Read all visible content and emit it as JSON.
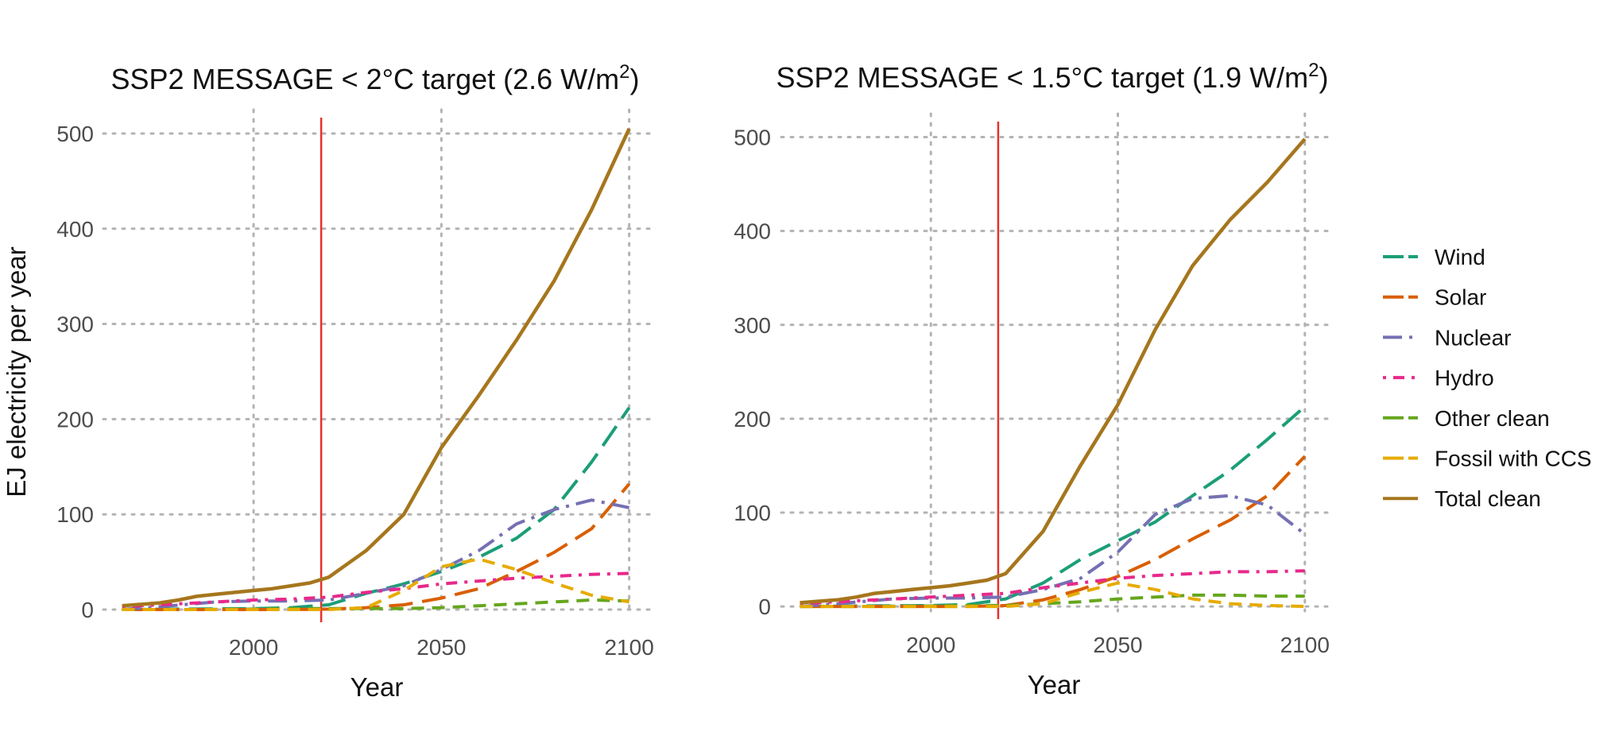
{
  "colors": {
    "Wind": "#1b9e77",
    "Solar": "#d95f02",
    "Nuclear": "#7570b3",
    "Hydro": "#e7298a",
    "Other clean": "#66a61e",
    "Fossil with CCS": "#e6ab02",
    "Total clean": "#a6761d",
    "marker": "#e8302b"
  },
  "ylabel": "EJ electricity per year",
  "xlabel": "Year",
  "legend": {
    "position": "right",
    "entries": [
      {
        "name": "Wind",
        "dash": "long-dash"
      },
      {
        "name": "Solar",
        "dash": "long-dash"
      },
      {
        "name": "Nuclear",
        "dash": "dash-dot"
      },
      {
        "name": "Hydro",
        "dash": "dot-dash"
      },
      {
        "name": "Other clean",
        "dash": "dash"
      },
      {
        "name": "Fossil with CCS",
        "dash": "dash"
      },
      {
        "name": "Total clean",
        "dash": "solid"
      }
    ]
  },
  "chart_data": [
    {
      "type": "line",
      "title_text": "SSP2 MESSAGE < 2°C target (2.6 W/m",
      "title_sup": "2",
      "title_end": ")",
      "xlabel": "Year",
      "ylabel": "EJ electricity per year",
      "xlim": [
        1960,
        2106
      ],
      "ylim": [
        -5,
        525
      ],
      "xticks": [
        2000,
        2050,
        2100
      ],
      "yticks": [
        0,
        100,
        200,
        300,
        400,
        500
      ],
      "vline": 2018,
      "grid": true,
      "series": [
        {
          "name": "Wind",
          "x": [
            1965,
            1980,
            2000,
            2010,
            2020,
            2030,
            2040,
            2050,
            2060,
            2070,
            2080,
            2090,
            2100
          ],
          "y": [
            0,
            0.5,
            1,
            2,
            5,
            17,
            27,
            40,
            55,
            75,
            105,
            155,
            212
          ]
        },
        {
          "name": "Solar",
          "x": [
            1965,
            1980,
            2000,
            2010,
            2020,
            2030,
            2040,
            2050,
            2060,
            2070,
            2080,
            2090,
            2100
          ],
          "y": [
            0,
            0,
            0,
            0,
            0.5,
            2,
            5,
            12,
            22,
            40,
            60,
            85,
            132
          ]
        },
        {
          "name": "Nuclear",
          "x": [
            1965,
            1975,
            1990,
            2000,
            2010,
            2020,
            2030,
            2040,
            2050,
            2060,
            2070,
            2080,
            2090,
            2100
          ],
          "y": [
            0,
            3,
            8,
            9,
            9,
            10,
            17,
            25,
            42,
            62,
            90,
            105,
            115,
            107
          ]
        },
        {
          "name": "Hydro",
          "x": [
            1965,
            1980,
            2000,
            2010,
            2020,
            2030,
            2040,
            2050,
            2060,
            2070,
            2080,
            2090,
            2100
          ],
          "y": [
            3,
            6,
            10,
            11,
            13,
            18,
            22,
            27,
            30,
            33,
            35,
            37,
            38
          ]
        },
        {
          "name": "Other clean",
          "x": [
            1965,
            1980,
            2000,
            2010,
            2020,
            2030,
            2040,
            2050,
            2060,
            2070,
            2080,
            2090,
            2100
          ],
          "y": [
            0,
            0,
            0.5,
            1,
            1,
            1,
            1,
            2,
            4,
            6,
            8,
            10,
            9
          ]
        },
        {
          "name": "Fossil with CCS",
          "x": [
            1965,
            1980,
            2000,
            2010,
            2020,
            2030,
            2040,
            2050,
            2060,
            2070,
            2080,
            2090,
            2100
          ],
          "y": [
            0,
            0,
            0,
            0,
            0,
            2,
            20,
            45,
            53,
            42,
            28,
            15,
            8
          ]
        },
        {
          "name": "Total clean",
          "x": [
            1965,
            1975,
            1980,
            1985,
            1990,
            1995,
            2000,
            2005,
            2010,
            2015,
            2020,
            2030,
            2040,
            2050,
            2060,
            2070,
            2080,
            2090,
            2100
          ],
          "y": [
            4,
            7,
            10,
            14,
            16,
            18,
            20,
            22,
            25,
            28,
            34,
            62,
            100,
            170,
            225,
            283,
            345,
            420,
            505
          ]
        }
      ]
    },
    {
      "type": "line",
      "title_text": "SSP2 MESSAGE < 1.5°C target (1.9 W/m",
      "title_sup": "2",
      "title_end": ")",
      "xlabel": "Year",
      "ylabel": "",
      "xlim": [
        1960,
        2106
      ],
      "ylim": [
        -5,
        525
      ],
      "xticks": [
        2000,
        2050,
        2100
      ],
      "yticks": [
        0,
        100,
        200,
        300,
        400,
        500
      ],
      "vline": 2018,
      "grid": true,
      "series": [
        {
          "name": "Wind",
          "x": [
            1965,
            1980,
            2000,
            2010,
            2020,
            2030,
            2040,
            2050,
            2060,
            2070,
            2080,
            2090,
            2100
          ],
          "y": [
            0,
            0.5,
            1,
            2,
            8,
            25,
            50,
            70,
            90,
            118,
            145,
            178,
            213
          ]
        },
        {
          "name": "Solar",
          "x": [
            1965,
            1980,
            2000,
            2010,
            2020,
            2030,
            2040,
            2050,
            2060,
            2070,
            2080,
            2090,
            2100
          ],
          "y": [
            0,
            0,
            0,
            0,
            1,
            7,
            18,
            32,
            50,
            72,
            92,
            118,
            160
          ]
        },
        {
          "name": "Nuclear",
          "x": [
            1965,
            1975,
            1990,
            2000,
            2010,
            2020,
            2030,
            2040,
            2050,
            2060,
            2070,
            2080,
            2090,
            2100
          ],
          "y": [
            0,
            3,
            8,
            9,
            9,
            10,
            18,
            30,
            58,
            98,
            115,
            118,
            108,
            77
          ]
        },
        {
          "name": "Hydro",
          "x": [
            1965,
            1980,
            2000,
            2010,
            2020,
            2030,
            2040,
            2050,
            2060,
            2070,
            2080,
            2090,
            2100
          ],
          "y": [
            3,
            6,
            10,
            12,
            14,
            20,
            25,
            30,
            33,
            35,
            37,
            37,
            38
          ]
        },
        {
          "name": "Other clean",
          "x": [
            1965,
            1980,
            2000,
            2010,
            2020,
            2030,
            2040,
            2050,
            2060,
            2070,
            2080,
            2090,
            2100
          ],
          "y": [
            0,
            0,
            0.5,
            1,
            1,
            3,
            5,
            8,
            10,
            12,
            12,
            11,
            11
          ]
        },
        {
          "name": "Fossil with CCS",
          "x": [
            1965,
            1980,
            2000,
            2010,
            2020,
            2030,
            2040,
            2050,
            2060,
            2070,
            2080,
            2090,
            2100
          ],
          "y": [
            0,
            0,
            0,
            0,
            0,
            3,
            15,
            25,
            18,
            8,
            3,
            1,
            0
          ]
        },
        {
          "name": "Total clean",
          "x": [
            1965,
            1975,
            1980,
            1985,
            1990,
            1995,
            2000,
            2005,
            2010,
            2015,
            2020,
            2030,
            2040,
            2050,
            2060,
            2070,
            2080,
            2090,
            2100
          ],
          "y": [
            4,
            7,
            10,
            14,
            16,
            18,
            20,
            22,
            25,
            28,
            35,
            80,
            150,
            215,
            295,
            363,
            412,
            452,
            498
          ]
        }
      ]
    }
  ]
}
